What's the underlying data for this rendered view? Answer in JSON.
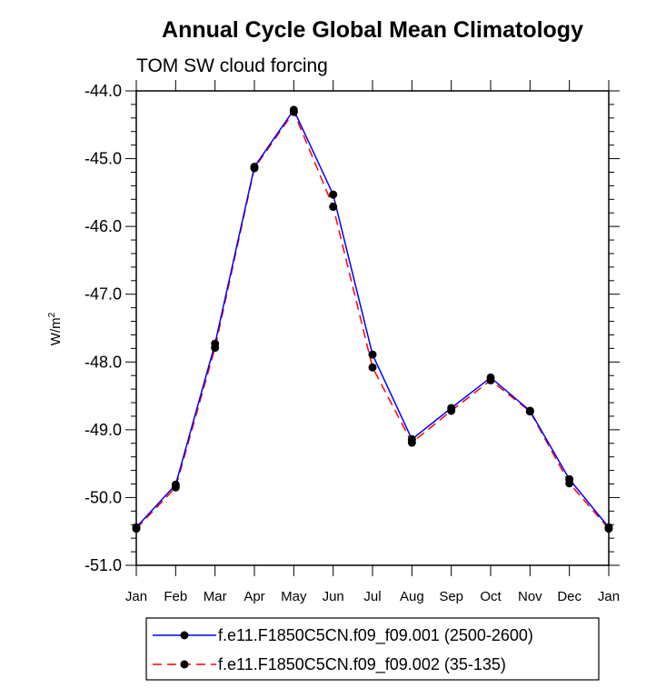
{
  "chart_data": {
    "type": "line",
    "title": "Annual Cycle Global Mean Climatology",
    "subtitle": "TOM SW cloud forcing",
    "ylabel": "W/m",
    "ylabel_superscript": "2",
    "xlabel": "",
    "categories": [
      "Jan",
      "Feb",
      "Mar",
      "Apr",
      "May",
      "Jun",
      "Jul",
      "Aug",
      "Sep",
      "Oct",
      "Nov",
      "Dec",
      "Jan"
    ],
    "ylim": [
      -51.0,
      -44.0
    ],
    "yticks": [
      "-44.0",
      "-45.0",
      "-46.0",
      "-47.0",
      "-48.0",
      "-49.0",
      "-50.0",
      "-51.0"
    ],
    "grid": false,
    "legend_position": "bottom",
    "series": [
      {
        "name": "f.e11.F1850C5CN.f09_f09.001 (2500-2600)",
        "color": "#0000ff",
        "dash": "solid",
        "marker": "filled-circle",
        "values": [
          -50.44,
          -49.81,
          -47.73,
          -45.12,
          -44.28,
          -45.53,
          -47.89,
          -49.14,
          -48.68,
          -48.23,
          -48.72,
          -49.73,
          -50.44
        ]
      },
      {
        "name": "f.e11.F1850C5CN.f09_f09.002 (35-135)",
        "color": "#ff0000",
        "dash": "dashed",
        "marker": "filled-circle",
        "values": [
          -50.46,
          -49.85,
          -47.79,
          -45.14,
          -44.31,
          -45.71,
          -48.08,
          -49.19,
          -48.72,
          -48.27,
          -48.73,
          -49.79,
          -50.46
        ]
      }
    ]
  }
}
